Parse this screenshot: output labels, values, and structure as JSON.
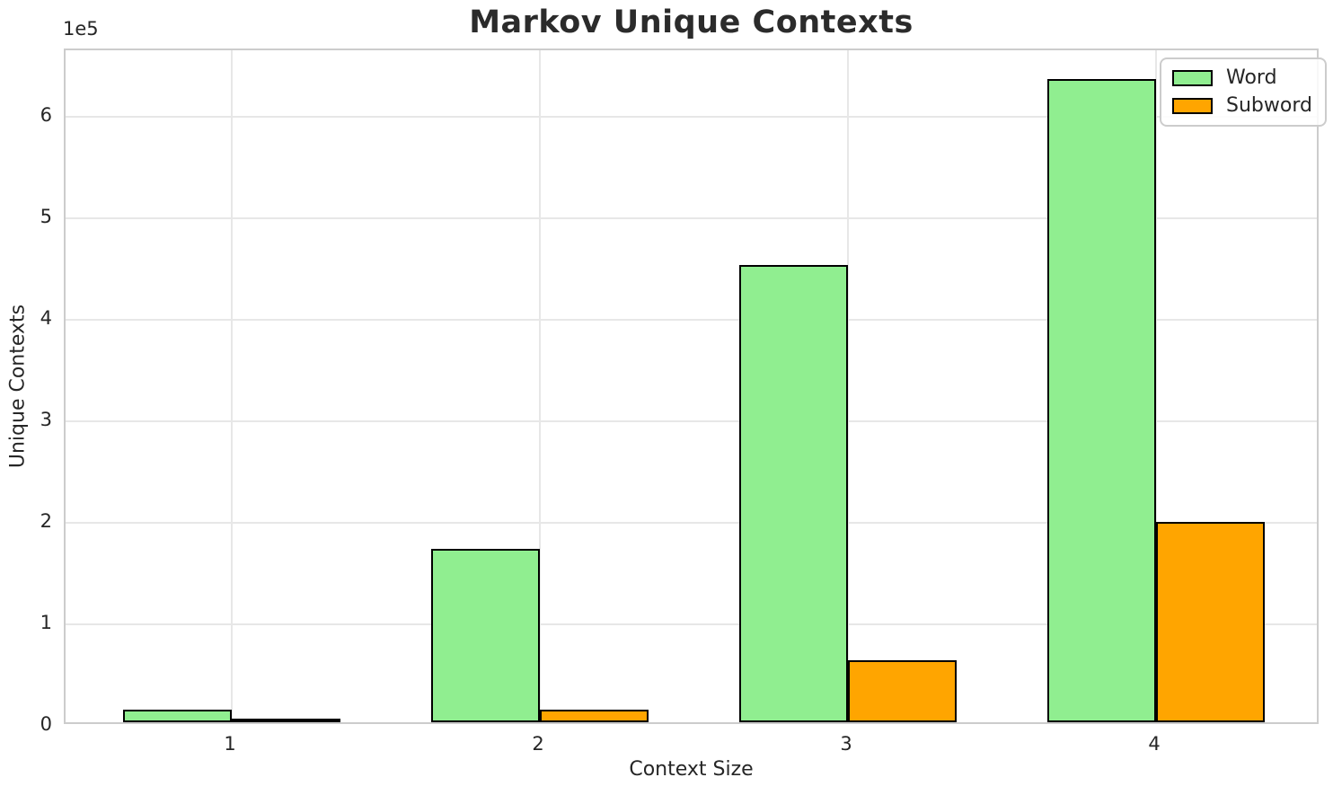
{
  "chart_data": {
    "type": "bar",
    "title": "Markov Unique Contexts",
    "xlabel": "Context Size",
    "ylabel": "Unique Contexts",
    "offset_text": "1e5",
    "categories": [
      "1",
      "2",
      "3",
      "4"
    ],
    "series": [
      {
        "name": "Word",
        "color": "#90ee90",
        "values": [
          12500,
          170500,
          450500,
          633500
        ]
      },
      {
        "name": "Subword",
        "color": "#ffa500",
        "values": [
          3000,
          12500,
          61000,
          197000
        ]
      }
    ],
    "bar_edge_color": "#000000",
    "ylim": [
      0,
      665000
    ],
    "yticks": [
      0,
      100000,
      200000,
      300000,
      400000,
      500000,
      600000
    ],
    "ytick_labels": [
      "0",
      "1",
      "2",
      "3",
      "4",
      "5",
      "6"
    ],
    "grid": true,
    "legend_position": "upper right"
  }
}
